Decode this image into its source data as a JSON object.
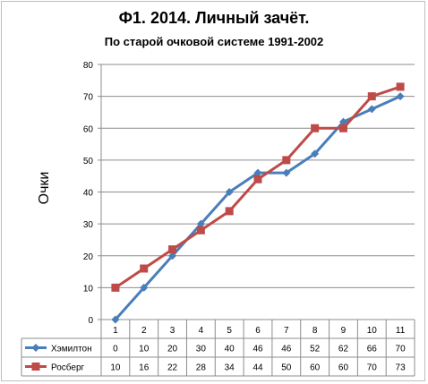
{
  "chart_data": {
    "type": "line",
    "title": "Ф1. 2014. Личный зачёт.",
    "subtitle": "По старой очковой системе 1991-2002",
    "ylabel": "Очки",
    "xlabel": "",
    "categories": [
      "1",
      "2",
      "3",
      "4",
      "5",
      "6",
      "7",
      "8",
      "9",
      "10",
      "11"
    ],
    "ylim": [
      0,
      80
    ],
    "yticks": [
      0,
      10,
      20,
      30,
      40,
      50,
      60,
      70,
      80
    ],
    "grid": true,
    "legend": "data-table",
    "series": [
      {
        "name": "Хэмилтон",
        "color": "#4a7ebb",
        "marker": "diamond",
        "values": [
          0,
          10,
          20,
          30,
          40,
          46,
          46,
          52,
          62,
          66,
          70
        ]
      },
      {
        "name": "Росберг",
        "color": "#be4b48",
        "marker": "square",
        "values": [
          10,
          16,
          22,
          28,
          34,
          44,
          50,
          60,
          60,
          70,
          73
        ]
      }
    ]
  }
}
